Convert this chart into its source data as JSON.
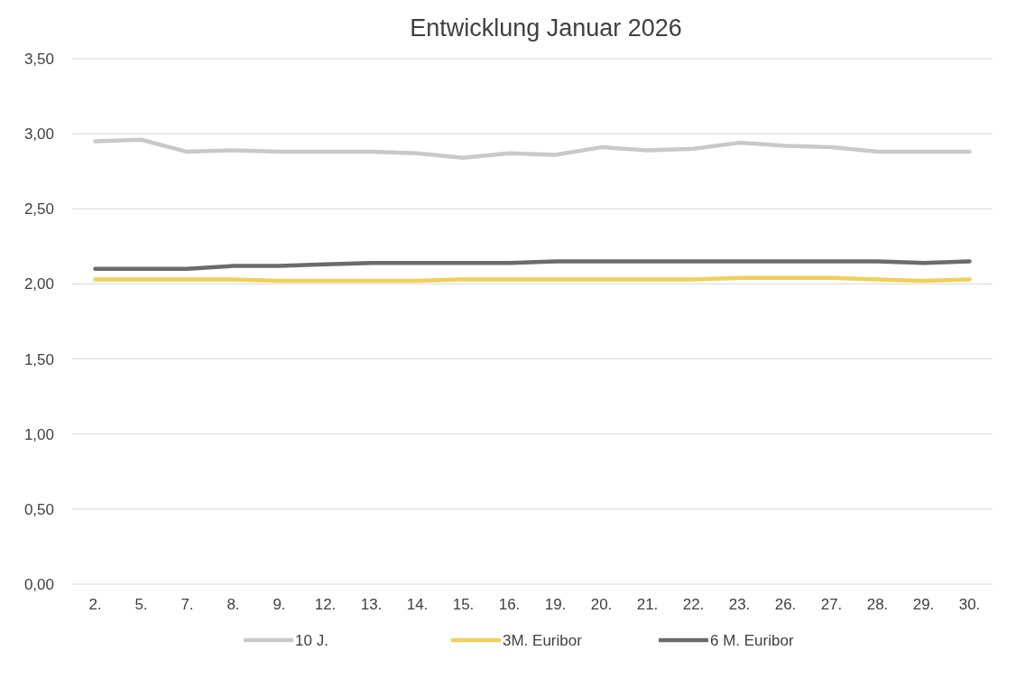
{
  "chart_data": {
    "type": "line",
    "title": "Entwicklung Januar 2026",
    "categories": [
      "2.",
      "5.",
      "7.",
      "8.",
      "9.",
      "12.",
      "13.",
      "14.",
      "15.",
      "16.",
      "19.",
      "20.",
      "21.",
      "22.",
      "23.",
      "26.",
      "27.",
      "28.",
      "29.",
      "30."
    ],
    "series": [
      {
        "name": "10 J.",
        "color": "#c9c9c9",
        "values": [
          2.95,
          2.96,
          2.88,
          2.89,
          2.88,
          2.88,
          2.88,
          2.87,
          2.84,
          2.87,
          2.86,
          2.91,
          2.89,
          2.9,
          2.94,
          2.92,
          2.91,
          2.88,
          2.88,
          2.88
        ]
      },
      {
        "name": "3M. Euribor",
        "color": "#f0d05a",
        "values": [
          2.03,
          2.03,
          2.03,
          2.03,
          2.02,
          2.02,
          2.02,
          2.02,
          2.03,
          2.03,
          2.03,
          2.03,
          2.03,
          2.03,
          2.04,
          2.04,
          2.04,
          2.03,
          2.02,
          2.03
        ]
      },
      {
        "name": "6 M. Euribor",
        "color": "#6b6b6b",
        "values": [
          2.1,
          2.1,
          2.1,
          2.12,
          2.12,
          2.13,
          2.14,
          2.14,
          2.14,
          2.14,
          2.15,
          2.15,
          2.15,
          2.15,
          2.15,
          2.15,
          2.15,
          2.15,
          2.14,
          2.15
        ]
      }
    ],
    "ylim": [
      0,
      3.5
    ],
    "yticks": [
      {
        "value": 0,
        "label": "0,00"
      },
      {
        "value": 0.5,
        "label": "0,50"
      },
      {
        "value": 1,
        "label": "1,00"
      },
      {
        "value": 1.5,
        "label": "1,50"
      },
      {
        "value": 2,
        "label": "2,00"
      },
      {
        "value": 2.5,
        "label": "2,50"
      },
      {
        "value": 3,
        "label": "3,00"
      },
      {
        "value": 3.5,
        "label": "3,50"
      }
    ],
    "grid": "y",
    "legend": "bottom",
    "marker": "none",
    "line_style": "solid"
  }
}
